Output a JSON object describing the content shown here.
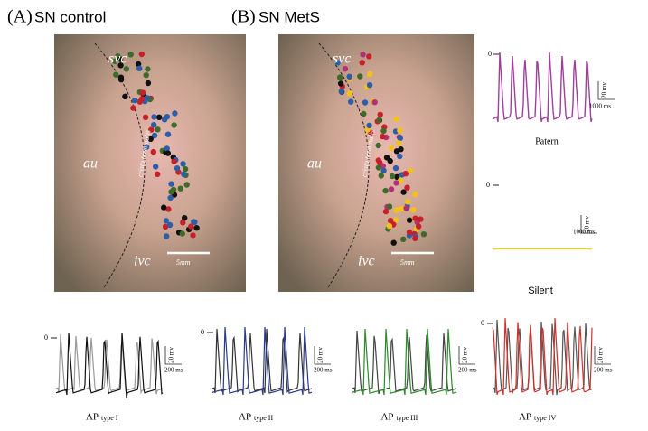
{
  "panels": [
    {
      "label": "(A)",
      "title": "SN control",
      "svc": "svc",
      "au": "au",
      "crista": "crista terminalis",
      "ivc": "ivc",
      "scale": "5mm"
    },
    {
      "label": "(B)",
      "title": "SN MetS",
      "svc": "svc",
      "au": "au",
      "crista": "crista terminalis",
      "ivc": "ivc",
      "scale": "5mm"
    }
  ],
  "side_traces": [
    {
      "zero": "0",
      "v_scale": "20 mv",
      "t_scale": "1000 ms",
      "caption": "Patern"
    },
    {
      "zero": "0",
      "v_scale": "20 mv",
      "t_scale": "1000 ms",
      "caption": "Silent"
    }
  ],
  "ap_types": [
    {
      "zero": "0",
      "v_scale": "20 mv",
      "t_scale": "200 ms",
      "ap": "AP",
      "type": "type I"
    },
    {
      "zero": "0",
      "v_scale": "20 mv",
      "t_scale": "200 ms",
      "ap": "AP",
      "type": "type II"
    },
    {
      "v_scale": "20 mv",
      "t_scale": "200 ms",
      "ap": "AP",
      "type": "type III"
    },
    {
      "zero": "0",
      "v_scale": "20 mv",
      "t_scale": "200 ms",
      "ap": "AP",
      "type": "type IV"
    }
  ]
}
